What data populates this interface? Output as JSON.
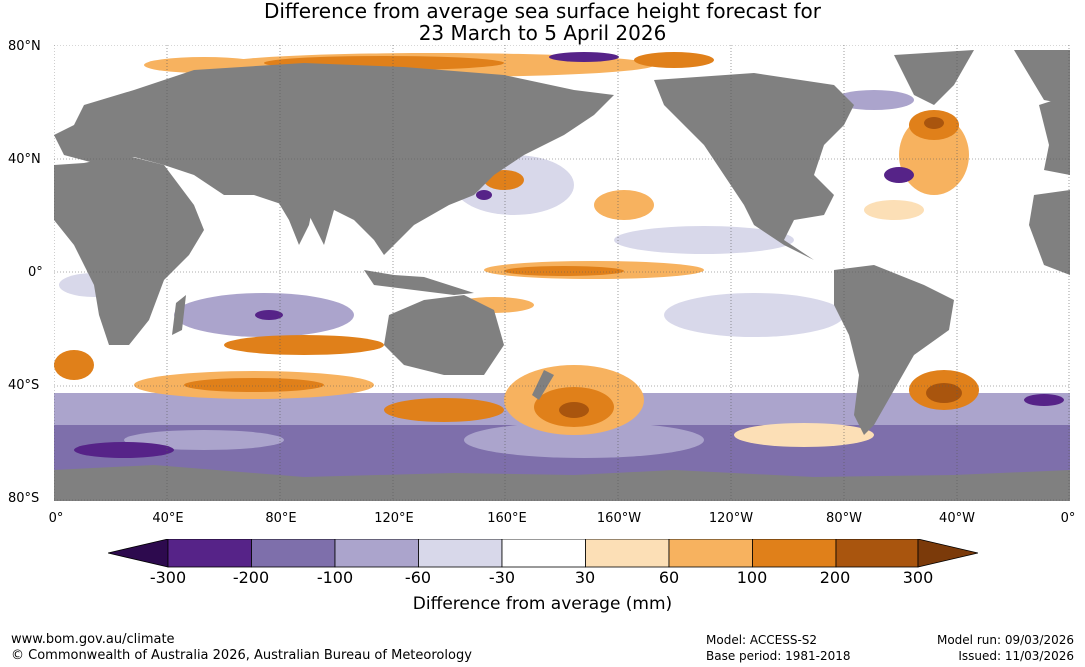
{
  "title": {
    "line1": "Difference from average sea surface height forecast for",
    "line2": "23 March to 5 April 2026"
  },
  "map": {
    "lat_labels": [
      "80°N",
      "40°N",
      "0°",
      "40°S",
      "80°S"
    ],
    "lon_labels": [
      "0°",
      "40°E",
      "80°E",
      "120°E",
      "160°E",
      "160°W",
      "120°W",
      "80°W",
      "40°W",
      "0°"
    ],
    "colors": {
      "land": "#808080",
      "ocean_neutral": "#ffffff",
      "gridline": "#5a5a5a"
    }
  },
  "legend": {
    "ticks": [
      "-300",
      "-200",
      "-100",
      "-60",
      "-30",
      "30",
      "60",
      "100",
      "200",
      "300"
    ],
    "label": "Difference from average (mm)",
    "colors": [
      "#2d0a4e",
      "#562388",
      "#7e6fab",
      "#aba4cc",
      "#d8d8ea",
      "#ffffff",
      "#fcdfb6",
      "#f7b25f",
      "#e0801a",
      "#a9550e",
      "#7b3a0a"
    ]
  },
  "footer": {
    "url": "www.bom.gov.au/climate",
    "copyright": "© Commonwealth of Australia 2026, Australian Bureau of Meteorology",
    "model": "Model: ACCESS-S2",
    "base_period": "Base period: 1981-2018",
    "model_run": "Model run: 09/03/2026",
    "issued": "Issued: 11/03/2026"
  }
}
